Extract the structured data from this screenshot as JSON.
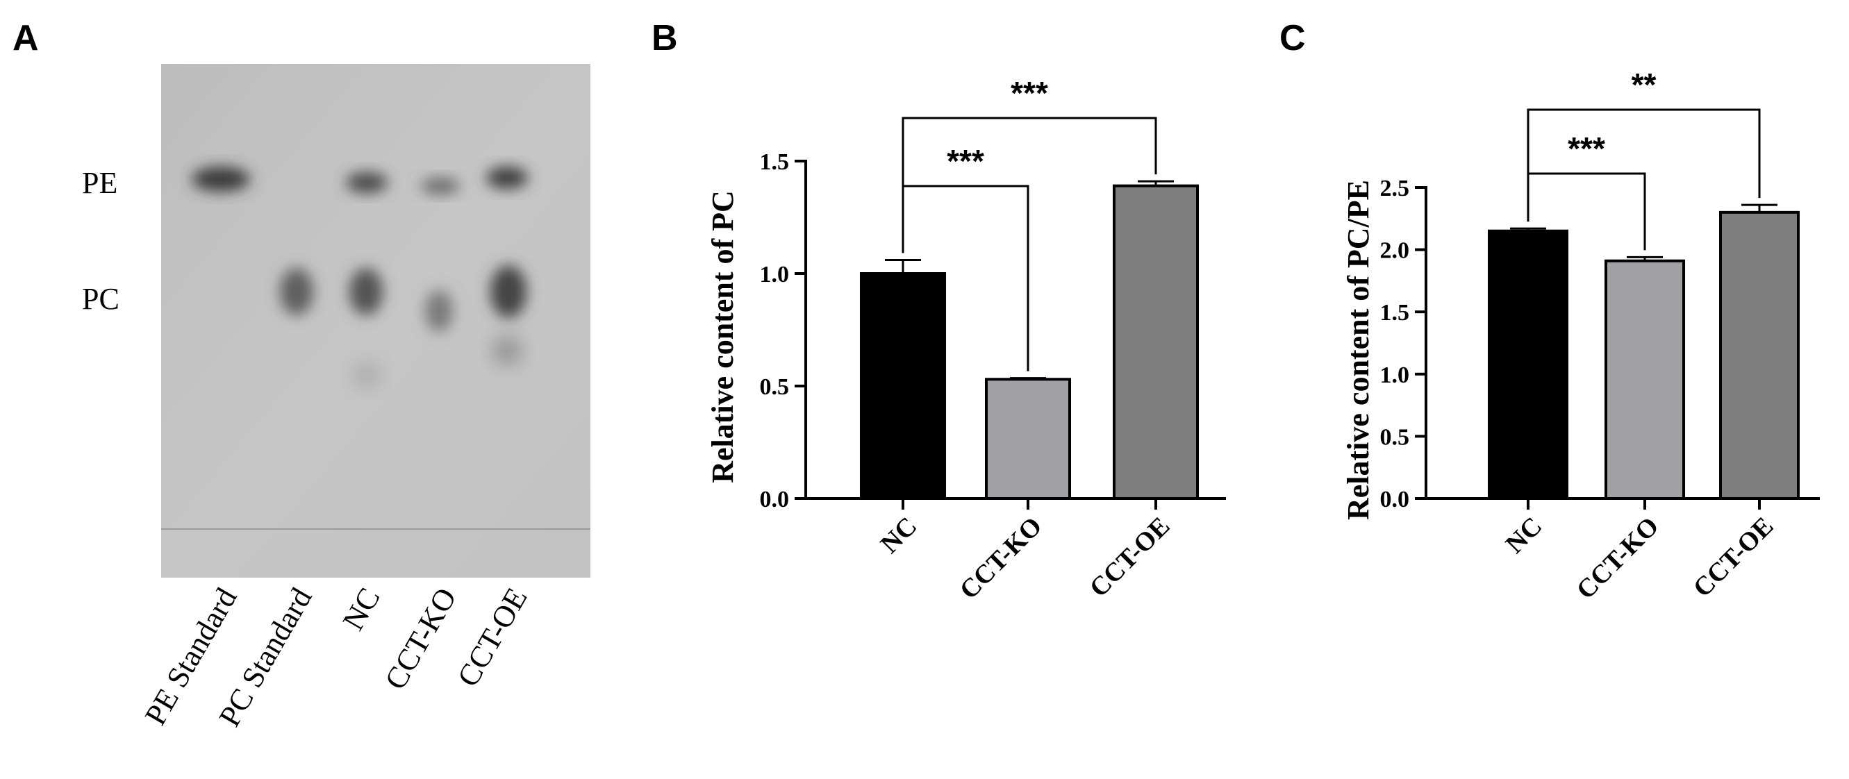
{
  "panels": {
    "a": {
      "letter": "A"
    },
    "b": {
      "letter": "B"
    },
    "c": {
      "letter": "C"
    }
  },
  "gel": {
    "band_labels": [
      "PE",
      "PC"
    ],
    "lanes": [
      "PE Standard",
      "PC Standard",
      "NC",
      "CCT-KO",
      "CCT-OE"
    ]
  },
  "chart_data": [
    {
      "type": "bar",
      "panel": "B",
      "categories": [
        "NC",
        "CCT-KO",
        "CCT-OE"
      ],
      "values": [
        1.0,
        0.53,
        1.39
      ],
      "errors": [
        0.06,
        0.005,
        0.02
      ],
      "bar_colors": [
        "#000000",
        "#a2a2a6",
        "#7f7f7f"
      ],
      "ylabel": "Relative content of PC",
      "ylim": [
        0,
        1.5
      ],
      "yticks": [
        0.0,
        0.5,
        1.0,
        1.5
      ],
      "ytick_labels": [
        "0.0",
        "0.5",
        "1.0",
        "1.5"
      ],
      "significance": [
        {
          "from": 0,
          "to": 1,
          "label": "***",
          "level": 1
        },
        {
          "from": 0,
          "to": 2,
          "label": "***",
          "level": 2
        }
      ]
    },
    {
      "type": "bar",
      "panel": "C",
      "categories": [
        "NC",
        "CCT-KO",
        "CCT-OE"
      ],
      "values": [
        2.15,
        1.91,
        2.3
      ],
      "errors": [
        0.02,
        0.03,
        0.06
      ],
      "bar_colors": [
        "#000000",
        "#a2a2a6",
        "#7f7f7f"
      ],
      "ylabel": "Relative content of PC/PE",
      "ylim": [
        0,
        2.5
      ],
      "yticks": [
        0.0,
        0.5,
        1.0,
        1.5,
        2.0,
        2.5
      ],
      "ytick_labels": [
        "0.0",
        "0.5",
        "1.0",
        "1.5",
        "2.0",
        "2.5"
      ],
      "significance": [
        {
          "from": 0,
          "to": 1,
          "label": "***",
          "level": 1
        },
        {
          "from": 0,
          "to": 2,
          "label": "**",
          "level": 2
        }
      ]
    }
  ]
}
